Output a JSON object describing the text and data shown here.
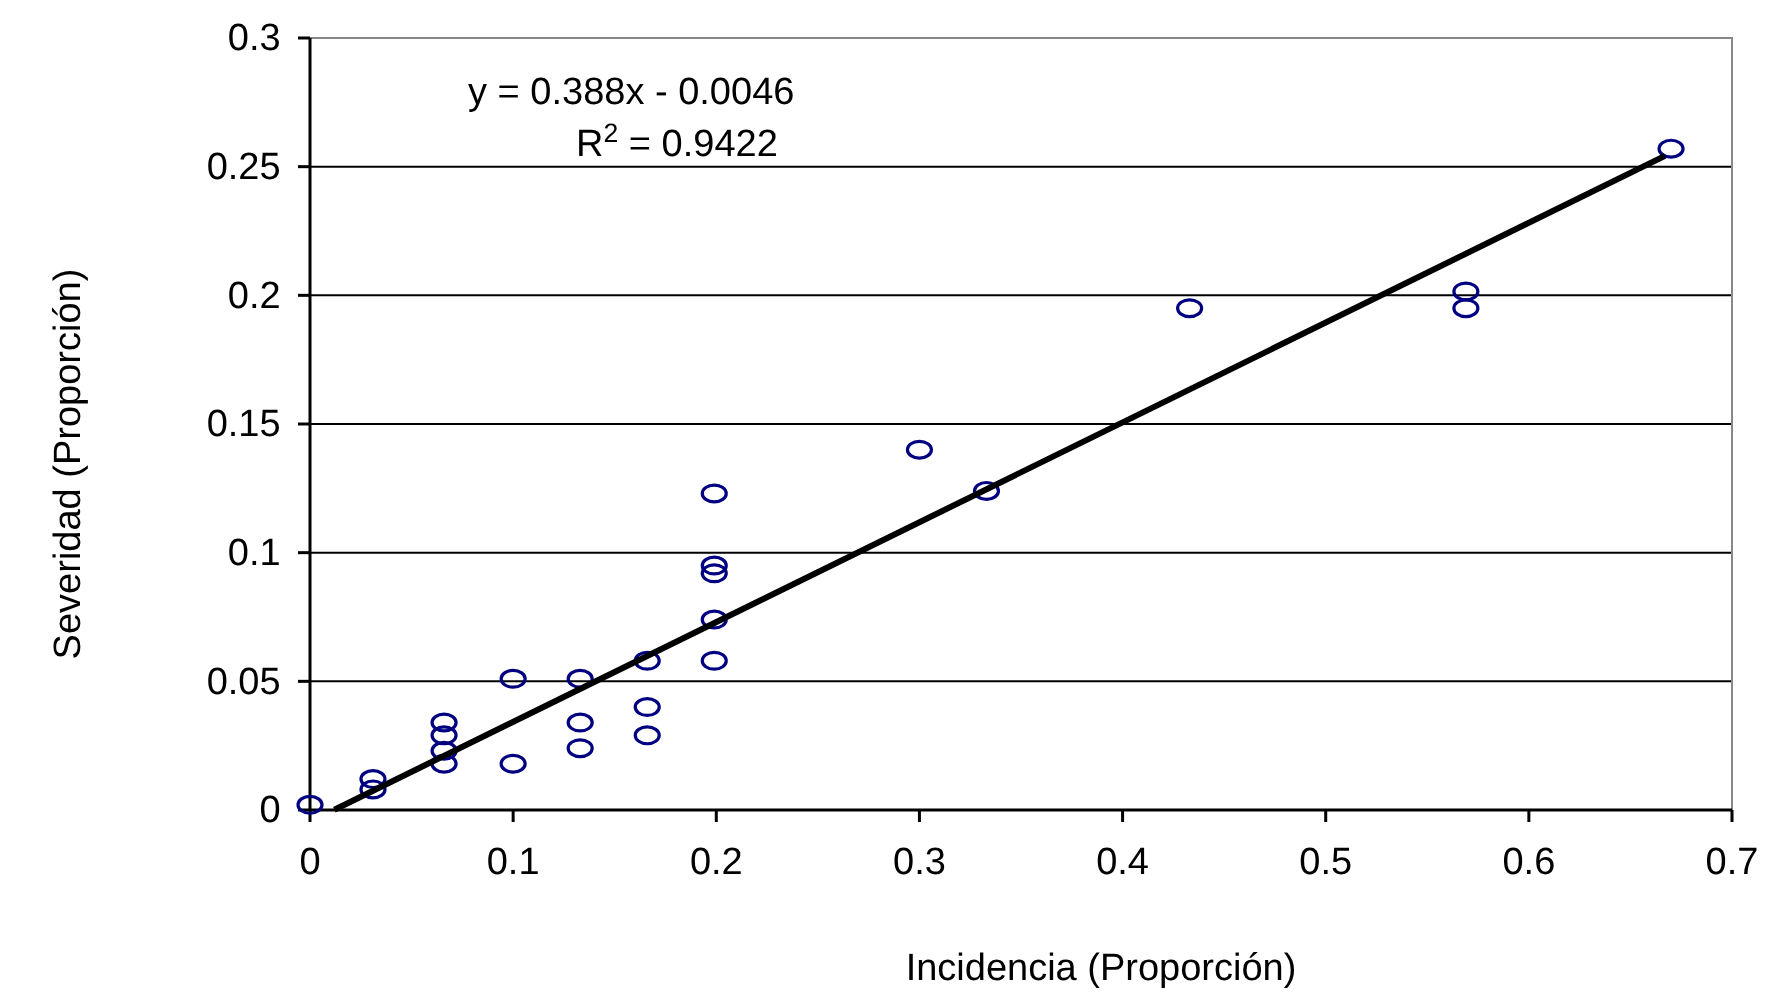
{
  "chart_data": {
    "type": "scatter",
    "xlabel": "Incidencia (Proporción)",
    "ylabel": "Severidad (Proporción)",
    "xlim": [
      0,
      0.7
    ],
    "xticks": [
      0,
      0.1,
      0.2,
      0.3,
      0.4,
      0.5,
      0.6,
      0.7
    ],
    "ylim": [
      0,
      0.3
    ],
    "yticks": [
      0,
      0.05,
      0.1,
      0.15,
      0.2,
      0.25,
      0.3
    ],
    "grid": "y",
    "marker": "circle",
    "annotations": [
      "y = 0.388x - 0.0046",
      "R$^{2}$ = 0.9422"
    ],
    "series": [
      {
        "color": "#000080",
        "x": [
          0,
          0.031,
          0.031,
          0.066,
          0.066,
          0.066,
          0.066,
          0.1,
          0.1,
          0.133,
          0.133,
          0.133,
          0.166,
          0.166,
          0.166,
          0.199,
          0.199,
          0.199,
          0.199,
          0.199,
          0.3,
          0.333,
          0.433,
          0.569,
          0.569,
          0.67
        ],
        "values": [
          0.002,
          0.012,
          0.008,
          0.034,
          0.029,
          0.023,
          0.018,
          0.051,
          0.018,
          0.051,
          0.034,
          0.024,
          0.058,
          0.04,
          0.029,
          0.123,
          0.095,
          0.092,
          0.074,
          0.058,
          0.14,
          0.124,
          0.195,
          0.2015,
          0.195,
          0.257
        ]
      },
      {
        "type": "line",
        "color": "#000000",
        "marker": "none",
        "x": [
          0.012,
          0.667
        ],
        "values": [
          0.0001,
          0.2542
        ]
      }
    ]
  }
}
